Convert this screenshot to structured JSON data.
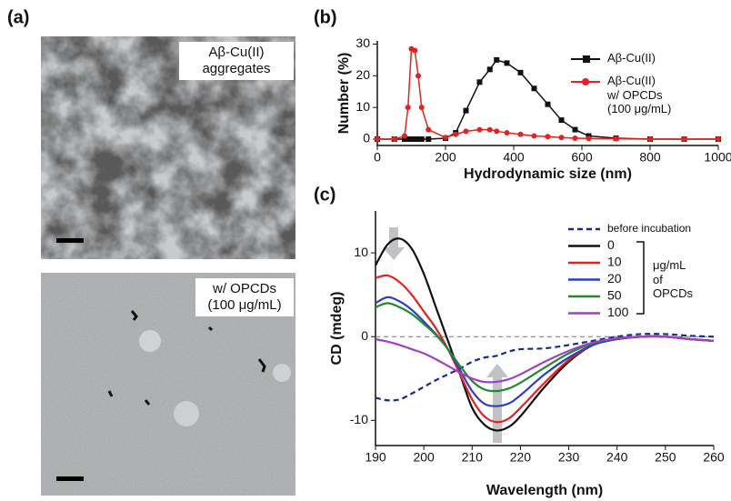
{
  "panels": {
    "a": "(a)",
    "b": "(b)",
    "c": "(c)"
  },
  "images": [
    {
      "caption": "Aβ-Cu(II)\naggregates"
    },
    {
      "caption": "w/ OPCDs\n(100 μg/mL)"
    }
  ],
  "chart_data": [
    {
      "type": "line",
      "markers": true,
      "x_label": "Hydrodynamic size (nm)",
      "y_label": "Number (%)",
      "x": [
        0,
        50,
        80,
        90,
        100,
        110,
        120,
        130,
        150,
        200,
        230,
        260,
        300,
        330,
        350,
        380,
        420,
        460,
        500,
        540,
        580,
        620,
        700,
        800,
        900,
        1000
      ],
      "xlim": [
        0,
        1000
      ],
      "xticks": [
        0,
        200,
        400,
        600,
        800,
        1000
      ],
      "ylim": [
        -2,
        31
      ],
      "yticks": [
        0,
        10,
        20,
        30
      ],
      "series": [
        {
          "name": "Aβ-Cu(II)",
          "color": "#111111",
          "marker": "square",
          "values": [
            0,
            0,
            0,
            0,
            0,
            0,
            0,
            0,
            0,
            0.3,
            2,
            9,
            18,
            22,
            25,
            24,
            21,
            16,
            11,
            6,
            3,
            1,
            0.3,
            0,
            0,
            0
          ]
        },
        {
          "name": "Aβ-Cu(II)\nw/ OPCDs\n(100 μg/mL)",
          "color": "#e8201f",
          "marker": "circle",
          "values": [
            0,
            0,
            1,
            10,
            28.5,
            28,
            20,
            10,
            3,
            0.5,
            1.5,
            2.5,
            3,
            3,
            2.5,
            2,
            1.5,
            1,
            0.8,
            0.5,
            0.3,
            0.2,
            0.1,
            0,
            0,
            0
          ]
        }
      ]
    },
    {
      "type": "line",
      "smooth": true,
      "zero_line": true,
      "x_label": "Wavelength (nm)",
      "y_label": "CD (mdeg)",
      "legend_note": "μg/mL\nof\nOPCDs",
      "x": [
        190,
        192.5,
        195,
        197.5,
        200,
        202.5,
        205,
        207.5,
        210,
        212.5,
        215,
        217.5,
        220,
        225,
        230,
        235,
        240,
        245,
        250,
        255,
        260
      ],
      "xlim": [
        190,
        260
      ],
      "xticks": [
        190,
        200,
        210,
        220,
        230,
        240,
        250,
        260
      ],
      "ylim": [
        -13,
        15
      ],
      "yticks": [
        -10,
        0,
        10
      ],
      "series": [
        {
          "name": "before incubation",
          "color": "#1c2a8c",
          "dashed": true,
          "values": [
            -7.3,
            -7.6,
            -7.5,
            -6.8,
            -6,
            -5.2,
            -4.5,
            -3.8,
            -3,
            -2.5,
            -2.3,
            -1.8,
            -1.5,
            -1.4,
            -1,
            -0.5,
            0,
            0.3,
            0.3,
            0.1,
            0
          ]
        },
        {
          "name": "0",
          "color": "#111111",
          "values": [
            8.5,
            11,
            11.7,
            10.5,
            7.5,
            3.5,
            -0.5,
            -4.5,
            -8.5,
            -10.5,
            -11.2,
            -10.8,
            -9.5,
            -6,
            -3,
            -1,
            -0.3,
            0,
            0,
            -0.3,
            -0.5
          ]
        },
        {
          "name": "10",
          "color": "#e8201f",
          "values": [
            7,
            7.3,
            6.5,
            5,
            3,
            1,
            -1.5,
            -4.5,
            -7.5,
            -9.5,
            -10.2,
            -9.8,
            -8.5,
            -5.5,
            -2.8,
            -1,
            -0.3,
            0,
            0,
            -0.3,
            -0.5
          ]
        },
        {
          "name": "20",
          "color": "#2b3fc4",
          "values": [
            4,
            4.7,
            4.2,
            3.2,
            1.8,
            0.3,
            -1.5,
            -4,
            -6.5,
            -8,
            -8.3,
            -8,
            -7,
            -4.5,
            -2.5,
            -1,
            -0.3,
            0,
            0,
            -0.3,
            -0.5
          ]
        },
        {
          "name": "50",
          "color": "#1f8a2e",
          "values": [
            3.5,
            4,
            3.5,
            2.7,
            1.5,
            0.2,
            -1.5,
            -3.5,
            -5.3,
            -6.3,
            -6.5,
            -6.2,
            -5.5,
            -3.7,
            -2,
            -0.8,
            -0.2,
            0,
            0,
            -0.3,
            -0.5
          ]
        },
        {
          "name": "100",
          "color": "#a23fc6",
          "values": [
            -0.3,
            -0.6,
            -1,
            -1.5,
            -2,
            -2.7,
            -3.5,
            -4.3,
            -5,
            -5.4,
            -5.4,
            -5.1,
            -4.5,
            -3,
            -1.7,
            -0.7,
            -0.2,
            0,
            0,
            -0.3,
            -0.5
          ]
        }
      ]
    }
  ]
}
